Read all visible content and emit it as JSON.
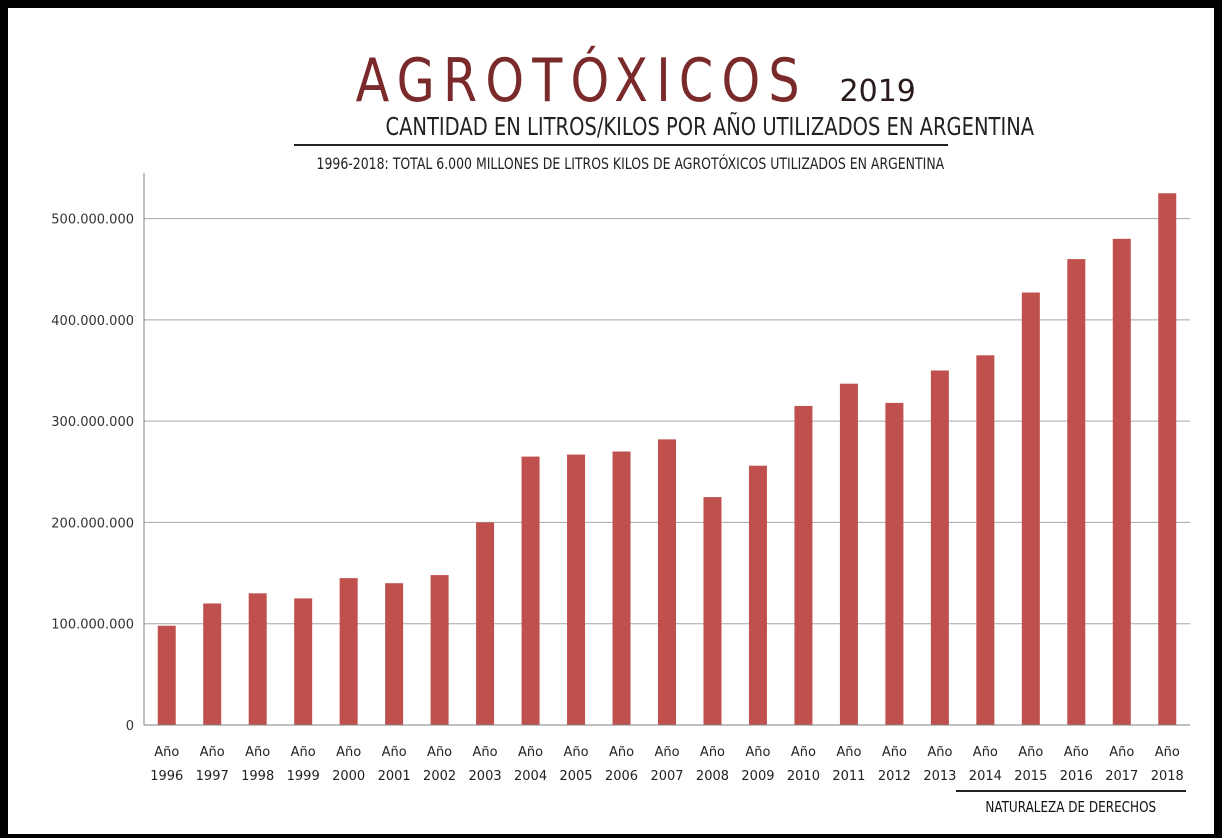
{
  "chart_data": {
    "type": "bar",
    "title": "AGROTÓXICOS",
    "title_year": "2019",
    "subtitle": "CANTIDAD EN LITROS/KILOS POR AÑO UTILIZADOS EN ARGENTINA",
    "annotation": "1996-2018: TOTAL 6.000 MILLONES DE LITROS KILOS DE AGROTÓXICOS UTILIZADOS EN ARGENTINA",
    "credit": "NATURALEZA DE DERECHOS",
    "categories": [
      [
        "Año",
        "1996"
      ],
      [
        "Año",
        "1997"
      ],
      [
        "Año",
        "1998"
      ],
      [
        "Año",
        "1999"
      ],
      [
        "Año",
        "2000"
      ],
      [
        "Año",
        "2001"
      ],
      [
        "Año",
        "2002"
      ],
      [
        "Año",
        "2003"
      ],
      [
        "Año",
        "2004"
      ],
      [
        "Año",
        "2005"
      ],
      [
        "Año",
        "2006"
      ],
      [
        "Año",
        "2007"
      ],
      [
        "Año",
        "2008"
      ],
      [
        "Año",
        "2009"
      ],
      [
        "Año",
        "2010"
      ],
      [
        "Año",
        "2011"
      ],
      [
        "Año",
        "2012"
      ],
      [
        "Año",
        "2013"
      ],
      [
        "Año",
        "2014"
      ],
      [
        "Año",
        "2015"
      ],
      [
        "Año",
        "2016"
      ],
      [
        "Año",
        "2017"
      ],
      [
        "Año",
        "2018"
      ]
    ],
    "values": [
      98000000,
      120000000,
      130000000,
      125000000,
      145000000,
      140000000,
      148000000,
      200000000,
      265000000,
      267000000,
      270000000,
      282000000,
      225000000,
      256000000,
      315000000,
      337000000,
      318000000,
      350000000,
      365000000,
      427000000,
      460000000,
      480000000,
      525000000
    ],
    "yticks": [
      {
        "value": 0,
        "label": "0"
      },
      {
        "value": 100000000,
        "label": "100.000.000"
      },
      {
        "value": 200000000,
        "label": "200.000.000"
      },
      {
        "value": 300000000,
        "label": "300.000.000"
      },
      {
        "value": 400000000,
        "label": "400.000.000"
      },
      {
        "value": 500000000,
        "label": "500.000.000"
      }
    ],
    "ylim": [
      0,
      545000000
    ],
    "grid": true,
    "legend": "none",
    "bar_color": "#c0504d",
    "grid_color": "#a6a6a6",
    "title_color": "#7a2a2a"
  }
}
